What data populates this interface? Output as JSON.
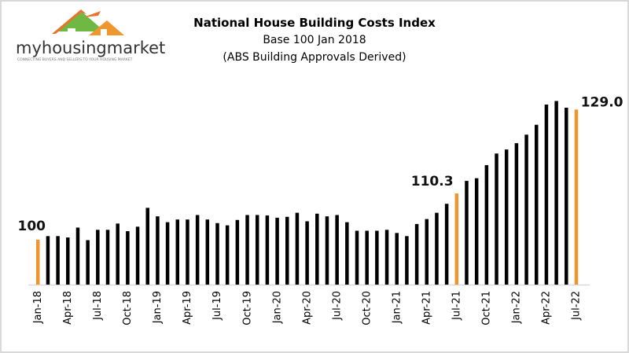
{
  "logo": {
    "text": "myhousingmarket",
    "tagline": "CONNECTING BUYERS AND SELLERS TO YOUR HOUSING MARKET"
  },
  "chart_data": {
    "type": "bar",
    "title": "National House Building Costs Index",
    "subtitle": "Base 100 Jan 2018",
    "subtitle2": "(ABS Building Approvals Derived)",
    "xlabel": "",
    "ylabel": "",
    "ylim": [
      90,
      132
    ],
    "grid": false,
    "legend": "none",
    "start_month": "2018-01",
    "tick_labels": [
      "Jan-18",
      "Apr-18",
      "Jul-18",
      "Oct-18",
      "Jan-19",
      "Apr-19",
      "Jul-19",
      "Oct-19",
      "Jan-20",
      "Apr-20",
      "Jul-20",
      "Oct-20",
      "Jan-21",
      "Apr-21",
      "Jul-21",
      "Oct-21",
      "Jan-22",
      "Apr-22",
      "Jul-22"
    ],
    "values": [
      100,
      100.8,
      100.8,
      100.5,
      102.7,
      99.9,
      102.2,
      102.2,
      103.6,
      101.9,
      102.9,
      107.1,
      105.2,
      103.9,
      104.5,
      104.5,
      105.5,
      104.5,
      103.7,
      103.2,
      104.4,
      105.5,
      105.5,
      105.4,
      104.9,
      105.1,
      106.0,
      104.1,
      105.8,
      105.2,
      105.5,
      103.9,
      102.0,
      102.0,
      102.0,
      102.2,
      101.5,
      100.8,
      103.5,
      104.6,
      106.0,
      108.0,
      110.3,
      113.1,
      113.7,
      116.6,
      119.2,
      120.1,
      121.5,
      123.4,
      125.6,
      130.1,
      130.9,
      129.4,
      129.0
    ],
    "highlighted": [
      {
        "index": 0,
        "label": "100"
      },
      {
        "index": 42,
        "label": "110.3"
      },
      {
        "index": 54,
        "label": "129.0"
      }
    ],
    "colors": {
      "bar": "#000000",
      "highlight": "#f0962e",
      "axis": "#d9d9d9"
    }
  }
}
